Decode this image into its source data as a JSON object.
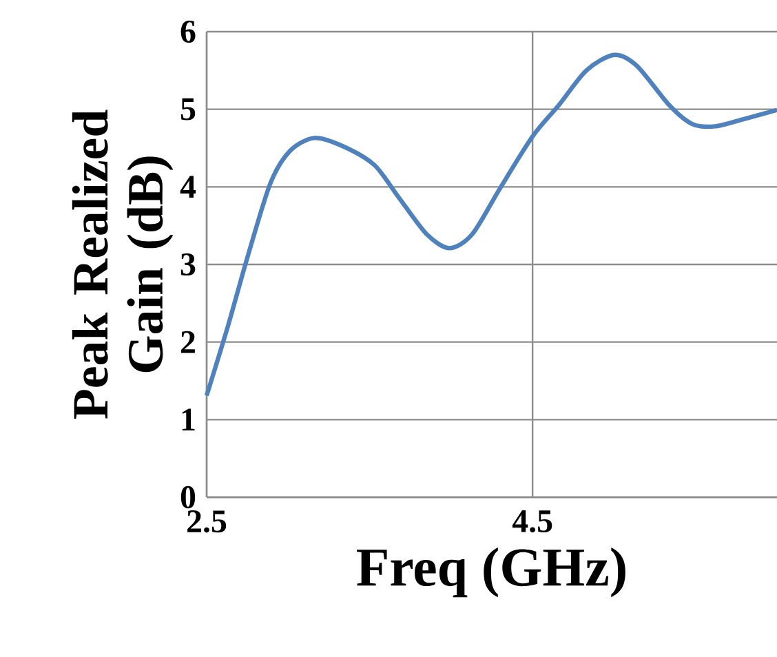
{
  "chart_data": {
    "type": "line",
    "xlabel": "Freq (GHz)",
    "ylabel": "Peak Realized Gain (dB)",
    "xlim": [
      2.5,
      6
    ],
    "xticks": [
      2.5,
      4.5
    ],
    "ylim": [
      0,
      6
    ],
    "yticks": [
      0,
      1,
      2,
      3,
      4,
      5,
      6
    ],
    "grid": true,
    "marker": "none",
    "line_style": "solid",
    "series": [
      {
        "color": "#4f81bd",
        "x": [
          2.5,
          2.63,
          2.75,
          2.89,
          3.01,
          3.16,
          3.34,
          3.53,
          3.68,
          3.85,
          3.99,
          4.13,
          4.3,
          4.5,
          4.66,
          4.83,
          5.0,
          5.14,
          5.34,
          5.48,
          5.62,
          5.79,
          6.0
        ],
        "values": [
          1.31,
          2.2,
          3.09,
          4.04,
          4.46,
          4.63,
          4.52,
          4.28,
          3.86,
          3.39,
          3.21,
          3.39,
          3.98,
          4.65,
          5.05,
          5.5,
          5.7,
          5.56,
          5.05,
          4.81,
          4.78,
          4.87,
          4.99
        ]
      }
    ]
  }
}
